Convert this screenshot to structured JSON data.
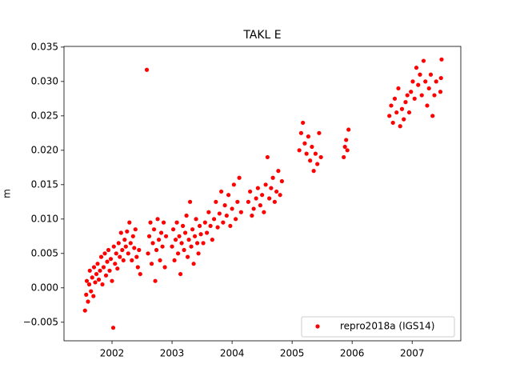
{
  "chart_data": {
    "type": "scatter",
    "title": "TAKL E",
    "y_label": "m",
    "x": [
      2001.55,
      2001.57,
      2001.58,
      2001.6,
      2001.62,
      2001.63,
      2001.65,
      2001.67,
      2001.69,
      2001.7,
      2001.72,
      2001.74,
      2001.76,
      2001.78,
      2001.8,
      2001.82,
      2001.84,
      2001.86,
      2001.88,
      2001.9,
      2001.92,
      2001.94,
      2001.96,
      2001.98,
      2002.0,
      2002.02,
      2002.03,
      2002.05,
      2002.07,
      2002.09,
      2002.11,
      2002.13,
      2002.15,
      2002.17,
      2002.19,
      2002.21,
      2002.23,
      2002.25,
      2002.27,
      2002.29,
      2002.31,
      2002.33,
      2002.35,
      2002.37,
      2002.39,
      2002.41,
      2002.43,
      2002.45,
      2002.47,
      2002.58,
      2002.6,
      2002.62,
      2002.64,
      2002.66,
      2002.68,
      2002.7,
      2002.72,
      2002.74,
      2002.76,
      2002.78,
      2002.8,
      2002.82,
      2002.84,
      2002.86,
      2002.88,
      2002.9,
      2003.0,
      2003.02,
      2003.04,
      2003.06,
      2003.08,
      2003.1,
      2003.12,
      2003.14,
      2003.16,
      2003.18,
      2003.2,
      2003.22,
      2003.24,
      2003.26,
      2003.28,
      2003.3,
      2003.32,
      2003.34,
      2003.36,
      2003.38,
      2003.4,
      2003.42,
      2003.44,
      2003.46,
      2003.48,
      2003.52,
      2003.55,
      2003.58,
      2003.61,
      2003.64,
      2003.67,
      2003.7,
      2003.73,
      2003.76,
      2003.79,
      2003.82,
      2003.85,
      2003.88,
      2003.91,
      2003.94,
      2003.97,
      2004.0,
      2004.03,
      2004.06,
      2004.09,
      2004.12,
      2004.15,
      2004.27,
      2004.3,
      2004.33,
      2004.36,
      2004.4,
      2004.43,
      2004.47,
      2004.5,
      2004.53,
      2004.56,
      2004.59,
      2004.62,
      2004.65,
      2004.68,
      2004.71,
      2004.74,
      2004.77,
      2004.8,
      2004.83,
      2005.12,
      2005.15,
      2005.18,
      2005.21,
      2005.24,
      2005.27,
      2005.3,
      2005.33,
      2005.36,
      2005.39,
      2005.42,
      2005.45,
      2005.48,
      2005.86,
      2005.88,
      2005.9,
      2005.92,
      2005.94,
      2006.62,
      2006.65,
      2006.68,
      2006.71,
      2006.74,
      2006.77,
      2006.8,
      2006.83,
      2006.86,
      2006.89,
      2006.92,
      2006.95,
      2006.98,
      2007.01,
      2007.04,
      2007.07,
      2007.1,
      2007.13,
      2007.16,
      2007.19,
      2007.22,
      2007.25,
      2007.28,
      2007.31,
      2007.34,
      2007.37,
      2007.4,
      2007.47,
      2007.48,
      2007.49
    ],
    "series": [
      {
        "name": "repro2018a (IGS14)",
        "color": "#ff0000",
        "values": [
          -0.0033,
          -0.001,
          0.001,
          -0.002,
          0.0005,
          0.0025,
          -0.0005,
          0.0015,
          -0.0012,
          0.003,
          0.0008,
          0.002,
          0.0035,
          0.0012,
          0.0025,
          0.0045,
          0.0005,
          0.003,
          0.005,
          0.0018,
          0.0038,
          0.0055,
          0.0025,
          0.0042,
          0.001,
          -0.0058,
          0.006,
          0.0035,
          0.005,
          0.0028,
          0.0065,
          0.0045,
          0.008,
          0.0055,
          0.004,
          0.007,
          0.006,
          0.0082,
          0.005,
          0.0095,
          0.0065,
          0.004,
          0.0075,
          0.0058,
          0.0085,
          0.0045,
          0.003,
          0.0055,
          0.002,
          0.0317,
          0.005,
          0.0075,
          0.0095,
          0.0035,
          0.0065,
          0.0085,
          0.001,
          0.0055,
          0.01,
          0.007,
          0.004,
          0.008,
          0.006,
          0.0095,
          0.003,
          0.0075,
          0.006,
          0.0085,
          0.004,
          0.007,
          0.0095,
          0.005,
          0.0075,
          0.002,
          0.0065,
          0.009,
          0.0055,
          0.008,
          0.0105,
          0.0045,
          0.007,
          0.0125,
          0.006,
          0.0085,
          0.0035,
          0.0075,
          0.01,
          0.0065,
          0.005,
          0.009,
          0.0078,
          0.0065,
          0.0095,
          0.008,
          0.011,
          0.009,
          0.007,
          0.01,
          0.0125,
          0.0088,
          0.0108,
          0.014,
          0.0095,
          0.012,
          0.0105,
          0.0135,
          0.009,
          0.0115,
          0.015,
          0.01,
          0.0125,
          0.016,
          0.011,
          0.0125,
          0.014,
          0.0105,
          0.0115,
          0.013,
          0.0145,
          0.012,
          0.0135,
          0.011,
          0.015,
          0.019,
          0.013,
          0.0145,
          0.016,
          0.0125,
          0.014,
          0.017,
          0.0135,
          0.0155,
          0.02,
          0.0225,
          0.024,
          0.021,
          0.0195,
          0.022,
          0.0185,
          0.0205,
          0.017,
          0.0195,
          0.018,
          0.0225,
          0.019,
          0.019,
          0.0205,
          0.0215,
          0.02,
          0.023,
          0.025,
          0.0265,
          0.024,
          0.0275,
          0.0255,
          0.029,
          0.0235,
          0.026,
          0.0245,
          0.027,
          0.028,
          0.0255,
          0.0285,
          0.03,
          0.0275,
          0.032,
          0.0295,
          0.031,
          0.028,
          0.033,
          0.03,
          0.0265,
          0.029,
          0.031,
          0.025,
          0.028,
          0.03,
          0.0285,
          0.0305,
          0.0332
        ]
      }
    ],
    "xlim": [
      2001.2,
      2007.81
    ],
    "xticks": [
      2002,
      2003,
      2004,
      2005,
      2006,
      2007
    ],
    "ylim": [
      -0.0077,
      0.0351
    ],
    "yticks": [
      {
        "value": -0.005,
        "label": "−0.005"
      },
      {
        "value": 0,
        "label": "0.000"
      },
      0.005,
      {
        "value": 0.01,
        "label": "0.010"
      },
      0.015,
      {
        "value": 0.02,
        "label": "0.020"
      },
      0.025,
      {
        "value": 0.03,
        "label": "0.030"
      },
      0.035
    ],
    "legend": "lower right"
  }
}
